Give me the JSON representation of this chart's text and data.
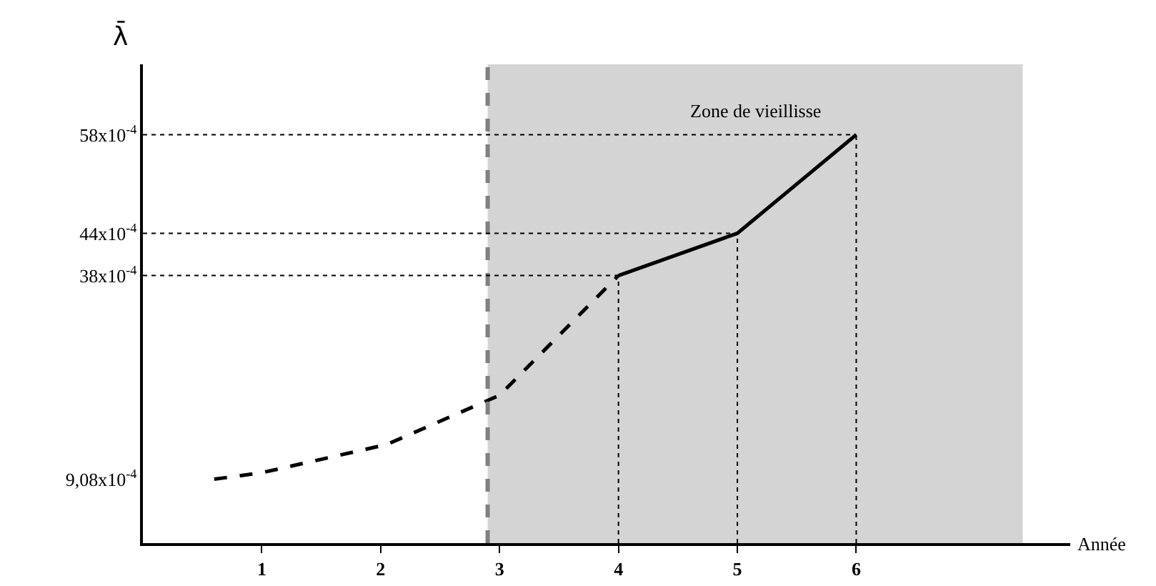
{
  "chart_data": {
    "type": "line",
    "xlabel": "Année",
    "ylabel": "λ̄",
    "series": [
      {
        "color": "#000000",
        "line_style": "dashed",
        "x": [
          0.6,
          1,
          2.05,
          3,
          4
        ],
        "values": [
          0.000908,
          0.001,
          0.0014,
          0.0021,
          0.0038
        ]
      },
      {
        "color": "#000000",
        "line_style": "solid",
        "x": [
          4,
          5,
          6
        ],
        "values": [
          0.0038,
          0.0044,
          0.0058
        ]
      }
    ],
    "xlim": [
      0,
      7.8
    ],
    "xticks": [
      1,
      2,
      3,
      4,
      5,
      6
    ],
    "ylim": [
      0,
      0.0068
    ],
    "yticks": [
      {
        "value": 0.000908,
        "label": "9,08x10$^{-4}$"
      },
      {
        "value": 0.0038,
        "label": "38x10$^{-4}$"
      },
      {
        "value": 0.0044,
        "label": "44x10$^{-4}$"
      },
      {
        "value": 0.0058,
        "label": "58x10$^{-4}$"
      }
    ],
    "ref_lines": [
      {
        "axis": "x",
        "value": 2.9,
        "color": "#808080",
        "line_style": "dashed"
      },
      {
        "axis": "y",
        "value": 0.0038,
        "color": "#000000",
        "line_style": "dotted"
      },
      {
        "axis": "y",
        "value": 0.0044,
        "color": "#000000",
        "line_style": "dotted"
      },
      {
        "axis": "y",
        "value": 0.0058,
        "color": "#000000",
        "line_style": "dotted"
      },
      {
        "axis": "x",
        "value": 4,
        "color": "#000000",
        "line_style": "dotted"
      },
      {
        "axis": "x",
        "value": 5,
        "color": "#000000",
        "line_style": "dotted"
      },
      {
        "axis": "x",
        "value": 6,
        "color": "#000000",
        "line_style": "dotted"
      }
    ],
    "bands": [
      {
        "axis": "x",
        "from": 2.9,
        "to": 7.4,
        "color": "#d4d4d4",
        "label": "Zone de vieillisse"
      }
    ],
    "grid": false
  }
}
